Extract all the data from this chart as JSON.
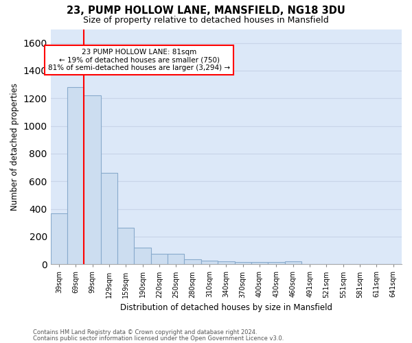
{
  "title": "23, PUMP HOLLOW LANE, MANSFIELD, NG18 3DU",
  "subtitle": "Size of property relative to detached houses in Mansfield",
  "xlabel": "Distribution of detached houses by size in Mansfield",
  "ylabel": "Number of detached properties",
  "footnote1": "Contains HM Land Registry data © Crown copyright and database right 2024.",
  "footnote2": "Contains public sector information licensed under the Open Government Licence v3.0.",
  "bar_labels": [
    "39sqm",
    "69sqm",
    "99sqm",
    "129sqm",
    "159sqm",
    "190sqm",
    "220sqm",
    "250sqm",
    "280sqm",
    "310sqm",
    "340sqm",
    "370sqm",
    "400sqm",
    "430sqm",
    "460sqm",
    "491sqm",
    "521sqm",
    "551sqm",
    "581sqm",
    "611sqm",
    "641sqm"
  ],
  "bar_values": [
    370,
    1280,
    1220,
    660,
    265,
    120,
    75,
    75,
    35,
    25,
    20,
    15,
    15,
    15,
    20,
    0,
    0,
    0,
    0,
    0,
    0
  ],
  "bar_color": "#ccddf0",
  "bar_edge_color": "#88aacc",
  "grid_color": "#c8d4e8",
  "background_color": "#dce8f8",
  "red_line_x": 1.5,
  "annotation_text": "23 PUMP HOLLOW LANE: 81sqm\n← 19% of detached houses are smaller (750)\n81% of semi-detached houses are larger (3,294) →",
  "ylim": [
    0,
    1700
  ],
  "yticks": [
    0,
    200,
    400,
    600,
    800,
    1000,
    1200,
    1400,
    1600
  ]
}
